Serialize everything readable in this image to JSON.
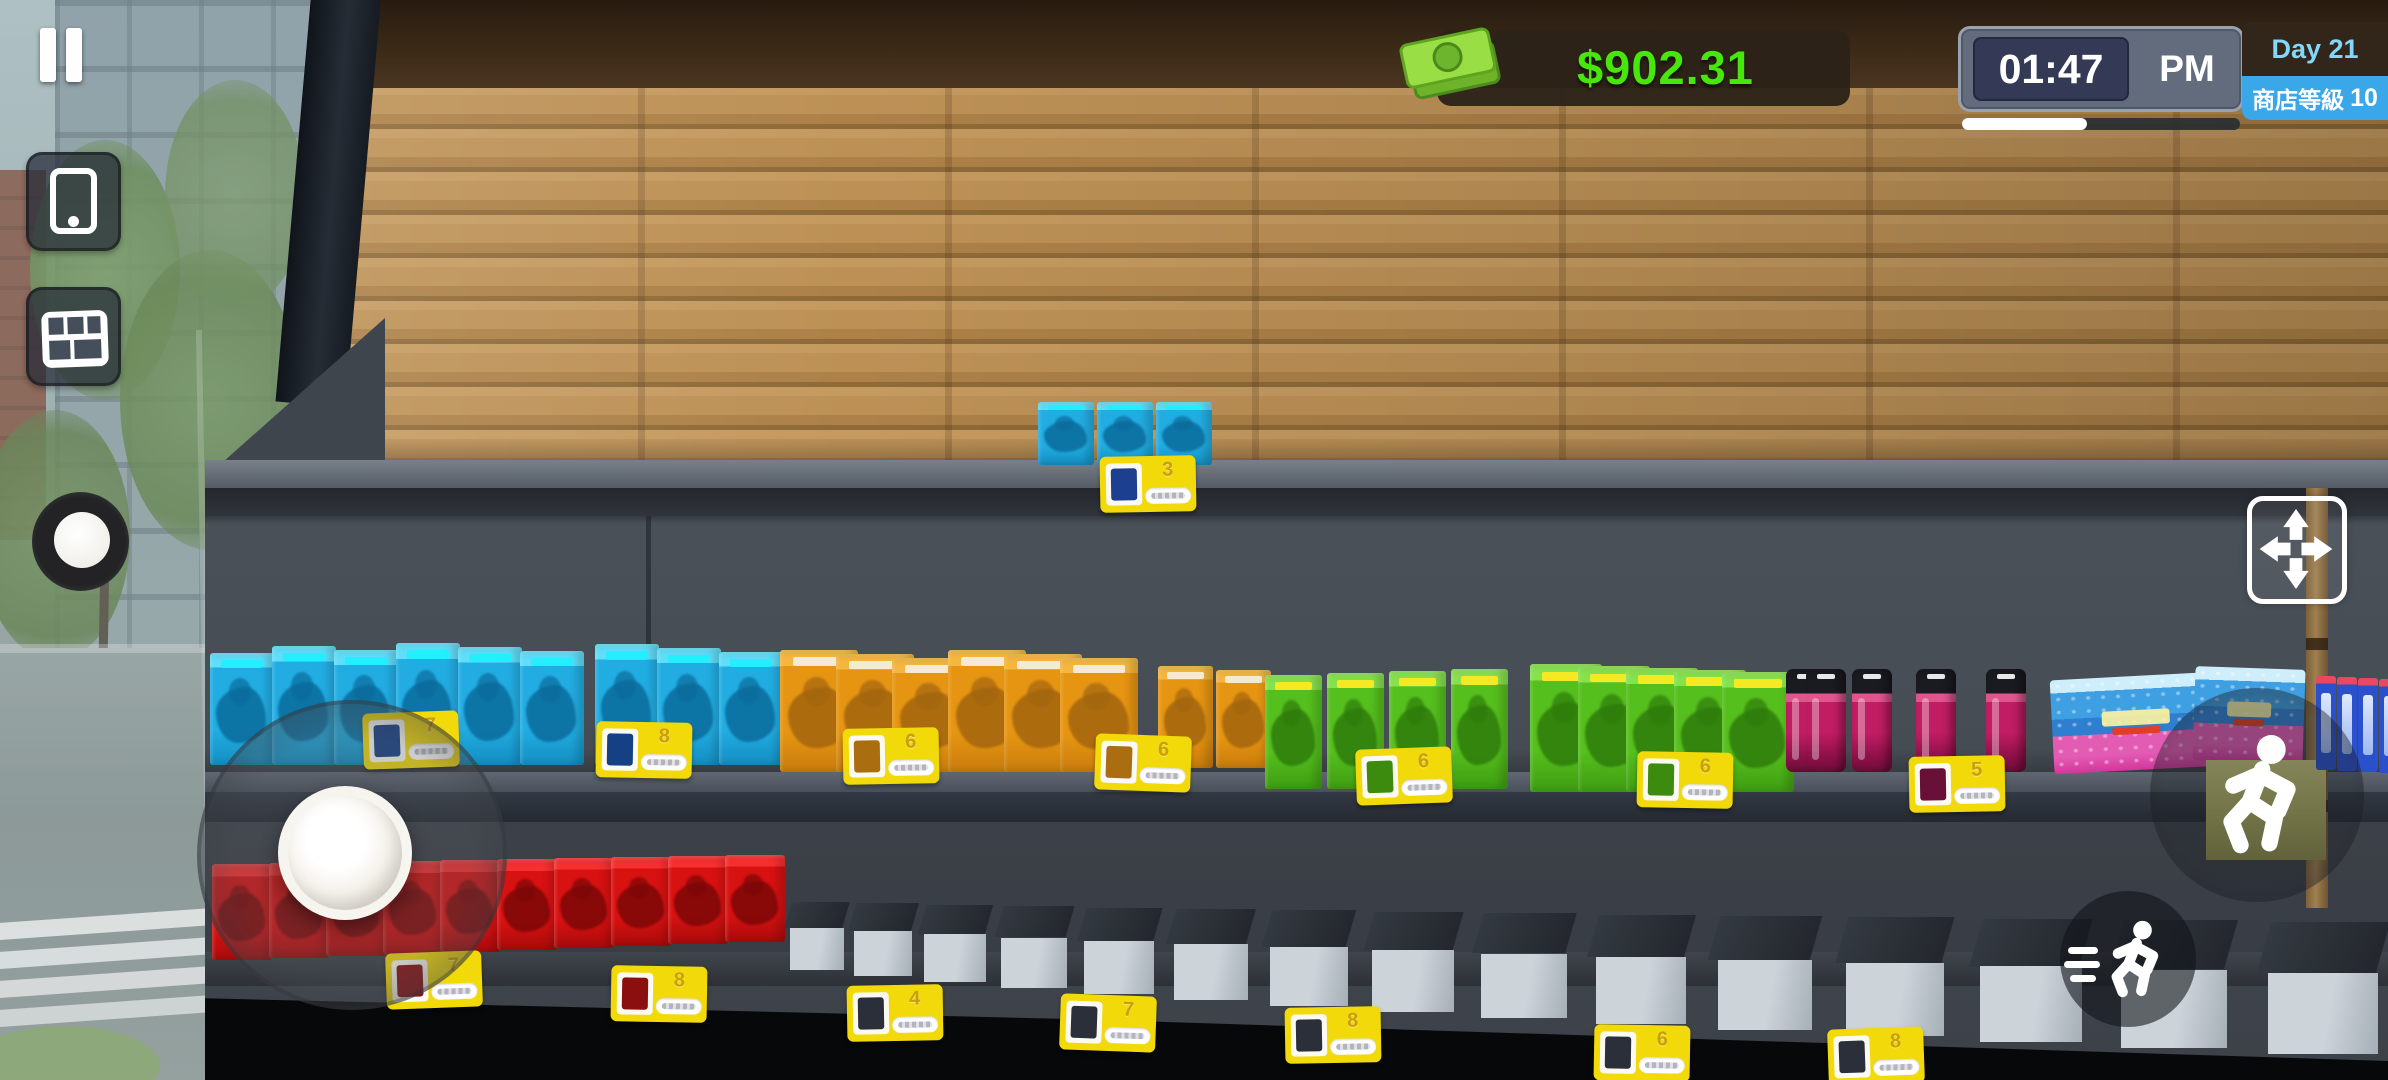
{
  "hud": {
    "money": "$902.31",
    "time": "01:47",
    "meridiem": "PM",
    "time_progress_pct": 45,
    "day": "Day 21",
    "shop_level_label": "商店等級",
    "shop_level_value": "10"
  },
  "controls": {
    "pause": "pause-icon",
    "phone": "smartphone-icon",
    "store": "storefront-icon",
    "camera": "camera-dot-icon",
    "move": "move-arrows-icon",
    "sprint_large": "running-person-icon",
    "sprint_small": "running-person-icon",
    "joystick": "joystick-knob"
  },
  "colors": {
    "money_text": "#47e70c",
    "day_text": "#82d7fb",
    "level_badge_bg": "#3aa7e8",
    "price_tag_bg": "#f2d90a",
    "wood_wall": "#b78d52",
    "shelf_bg": "#474d55",
    "box_blue": "#22ade2",
    "box_orange": "#e69512",
    "box_green": "#55bf1d",
    "box_red": "#d81111",
    "can_magenta": "#c01d63"
  },
  "shelf_stock": {
    "top_row": {
      "product": "blue mystery box",
      "count": 3,
      "tags": [
        "3"
      ]
    },
    "middle_row": [
      {
        "product": "blue mystery box",
        "count": 9,
        "tags": [
          "7",
          "8"
        ]
      },
      {
        "product": "orange mystery box",
        "count": 8,
        "tags": [
          "6",
          "6"
        ]
      },
      {
        "product": "green mystery box",
        "count": 9,
        "tags": [
          "6",
          "6"
        ]
      },
      {
        "product": "magenta spray can",
        "count": 5,
        "tags": [
          "5"
        ]
      },
      {
        "product": "trading card display box",
        "count": 3,
        "tags": []
      },
      {
        "product": "blue card pack",
        "count": 4,
        "tags": []
      }
    ],
    "bottom_row": [
      {
        "product": "red mystery box",
        "count": 10,
        "tags": [
          "7",
          "8"
        ]
      },
      {
        "product": "black-top tin box",
        "count": 17,
        "tags": [
          "4",
          "7",
          "8",
          "6",
          "8"
        ]
      }
    ]
  }
}
